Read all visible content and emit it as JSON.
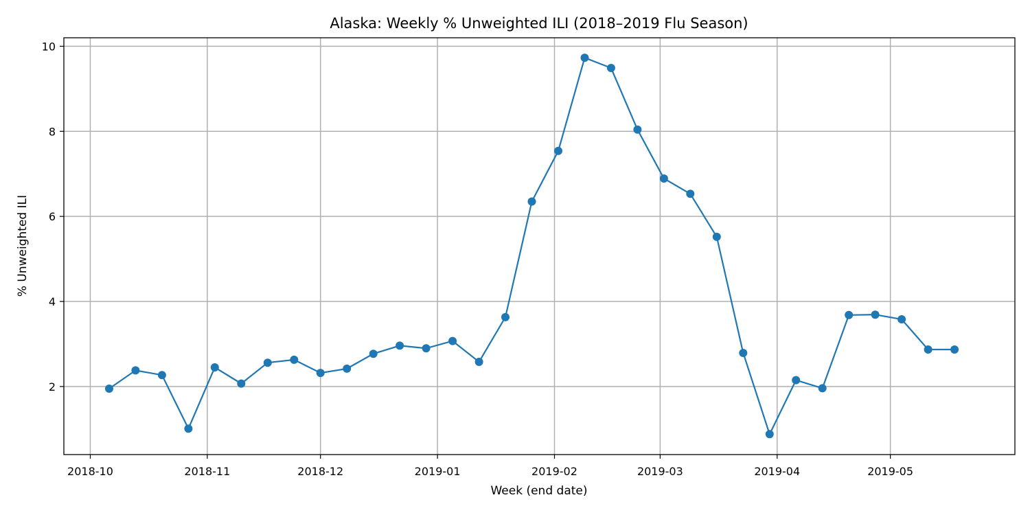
{
  "chart_data": {
    "type": "line",
    "title": "Alaska: Weekly % Unweighted ILI (2018–2019 Flu Season)",
    "xlabel": "Week (end date)",
    "ylabel": "% Unweighted ILI",
    "xlim": [
      "2018-09-24",
      "2019-06-03"
    ],
    "ylim": [
      0.4,
      10.2
    ],
    "x_ticks": [
      {
        "date": "2018-10-01",
        "label": "2018-10"
      },
      {
        "date": "2018-11-01",
        "label": "2018-11"
      },
      {
        "date": "2018-12-01",
        "label": "2018-12"
      },
      {
        "date": "2019-01-01",
        "label": "2019-01"
      },
      {
        "date": "2019-02-01",
        "label": "2019-02"
      },
      {
        "date": "2019-03-01",
        "label": "2019-03"
      },
      {
        "date": "2019-04-01",
        "label": "2019-04"
      },
      {
        "date": "2019-05-01",
        "label": "2019-05"
      }
    ],
    "y_ticks": [
      2,
      4,
      6,
      8,
      10
    ],
    "grid": true,
    "color": "#1f77b4",
    "series": [
      {
        "x": [
          "2018-10-06",
          "2018-10-13",
          "2018-10-20",
          "2018-10-27",
          "2018-11-03",
          "2018-11-10",
          "2018-11-17",
          "2018-11-24",
          "2018-12-01",
          "2018-12-08",
          "2018-12-15",
          "2018-12-22",
          "2018-12-29",
          "2019-01-05",
          "2019-01-12",
          "2019-01-19",
          "2019-01-26",
          "2019-02-02",
          "2019-02-09",
          "2019-02-16",
          "2019-02-23",
          "2019-03-02",
          "2019-03-09",
          "2019-03-16",
          "2019-03-23",
          "2019-03-30",
          "2019-04-06",
          "2019-04-13",
          "2019-04-20",
          "2019-04-27",
          "2019-05-04",
          "2019-05-11",
          "2019-05-18"
        ],
        "values": [
          1.95,
          2.38,
          2.27,
          1.01,
          2.45,
          2.07,
          2.56,
          2.63,
          2.32,
          2.42,
          2.77,
          2.96,
          2.9,
          3.07,
          2.58,
          3.63,
          6.35,
          7.54,
          9.73,
          9.49,
          8.04,
          6.89,
          6.53,
          5.52,
          2.79,
          0.88,
          2.15,
          1.96,
          3.68,
          3.69,
          3.58,
          2.87,
          2.87
        ]
      }
    ]
  }
}
